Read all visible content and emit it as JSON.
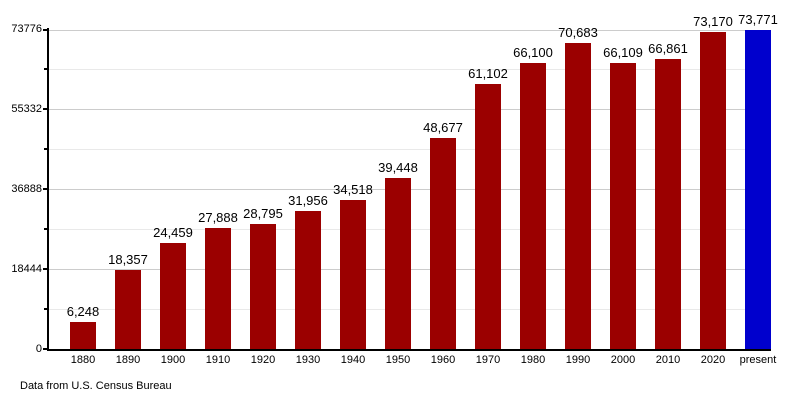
{
  "chart_data": {
    "type": "bar",
    "categories": [
      "1880",
      "1890",
      "1900",
      "1910",
      "1920",
      "1930",
      "1940",
      "1950",
      "1960",
      "1970",
      "1980",
      "1990",
      "2000",
      "2010",
      "2020",
      "present"
    ],
    "values": [
      6248,
      18357,
      24459,
      27888,
      28795,
      31956,
      34518,
      39448,
      48677,
      61102,
      66100,
      70683,
      66109,
      66861,
      73170,
      73771
    ],
    "value_labels": [
      "6,248",
      "18,357",
      "24,459",
      "27,888",
      "28,795",
      "31,956",
      "34,518",
      "39,448",
      "48,677",
      "61,102",
      "66,100",
      "70,683",
      "66,109",
      "66,861",
      "73,170",
      "73,771"
    ],
    "title": "",
    "xlabel": "",
    "ylabel": "",
    "ylim": [
      0,
      73776
    ],
    "ytick_labels": [
      "0",
      "18444",
      "36888",
      "55332",
      "73776"
    ],
    "yticks_major": [
      0,
      18444,
      36888,
      55332,
      73776
    ],
    "yticks_minor": [
      9222,
      27666,
      46110,
      64554
    ],
    "grid": "horizontal",
    "legend": "none",
    "colors": {
      "bar_default": "#9B0000",
      "bar_present": "#0000CD",
      "grid_major": "#CCCCCC",
      "grid_minor": "#E9E9E9",
      "axis": "#000000"
    },
    "caption": "Data from U.S. Census Bureau"
  }
}
